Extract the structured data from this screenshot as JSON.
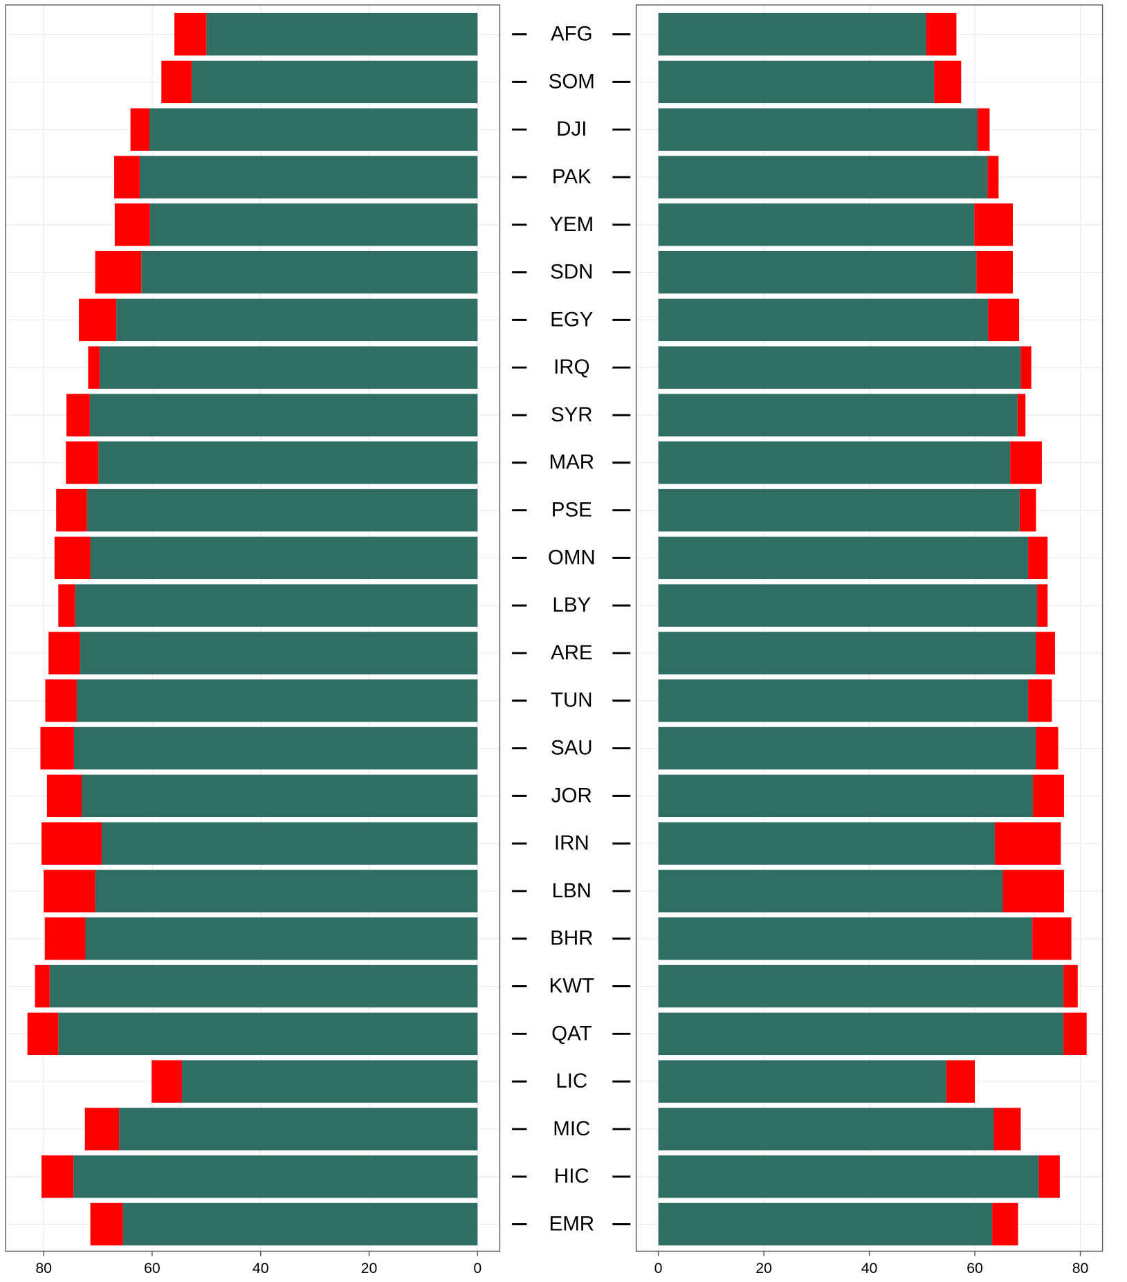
{
  "chart_data": [
    {
      "type": "bar",
      "orientation": "horizontal",
      "stacked": true,
      "categories": [
        "AFG",
        "SOM",
        "DJI",
        "PAK",
        "YEM",
        "SDN",
        "EGY",
        "IRQ",
        "SYR",
        "MAR",
        "PSE",
        "OMN",
        "LBY",
        "ARE",
        "TUN",
        "SAU",
        "JOR",
        "IRN",
        "LBN",
        "BHR",
        "KWT",
        "QAT",
        "LIC",
        "MIC",
        "HIC",
        "EMR"
      ],
      "series": [
        {
          "color": "#2e6e65",
          "values": [
            50.0,
            52.7,
            60.5,
            62.3,
            60.4,
            62.0,
            66.6,
            69.7,
            71.5,
            69.9,
            72.0,
            71.4,
            74.2,
            73.3,
            73.9,
            74.4,
            73.0,
            69.3,
            70.5,
            72.3,
            78.9,
            77.3,
            54.5,
            66.1,
            74.5,
            65.4
          ]
        },
        {
          "color": "#ff0000",
          "values": [
            5.9,
            5.6,
            3.5,
            4.7,
            6.5,
            8.5,
            6.9,
            2.1,
            4.3,
            6.0,
            5.7,
            6.6,
            3.1,
            5.8,
            5.8,
            6.2,
            6.4,
            11.1,
            9.5,
            7.5,
            2.7,
            5.7,
            5.6,
            6.3,
            5.9,
            6.0
          ]
        }
      ],
      "xlim": [
        87.0,
        -4.1
      ],
      "xticks": [
        80,
        60,
        40,
        20,
        0
      ],
      "grid": true
    },
    {
      "type": "bar",
      "orientation": "horizontal",
      "stacked": true,
      "series": [
        {
          "color": "#2e6e65",
          "values": [
            50.8,
            52.3,
            60.5,
            62.4,
            59.9,
            60.3,
            62.5,
            68.7,
            68.1,
            66.7,
            68.5,
            70.1,
            71.8,
            71.6,
            70.1,
            71.6,
            71.0,
            63.8,
            65.3,
            70.9,
            76.8,
            76.8,
            54.6,
            63.6,
            72.1,
            63.3
          ]
        },
        {
          "color": "#ff0000",
          "values": [
            5.7,
            5.1,
            2.3,
            2.1,
            7.3,
            6.9,
            5.9,
            2.0,
            1.5,
            6.0,
            3.1,
            3.7,
            2.0,
            3.6,
            4.5,
            4.2,
            5.9,
            12.5,
            11.6,
            7.4,
            2.7,
            4.4,
            5.4,
            5.1,
            4.0,
            4.9
          ]
        }
      ],
      "xlim": [
        -4.2,
        84.2
      ],
      "xticks": [
        0,
        20,
        40,
        60,
        80
      ],
      "grid": true
    }
  ]
}
